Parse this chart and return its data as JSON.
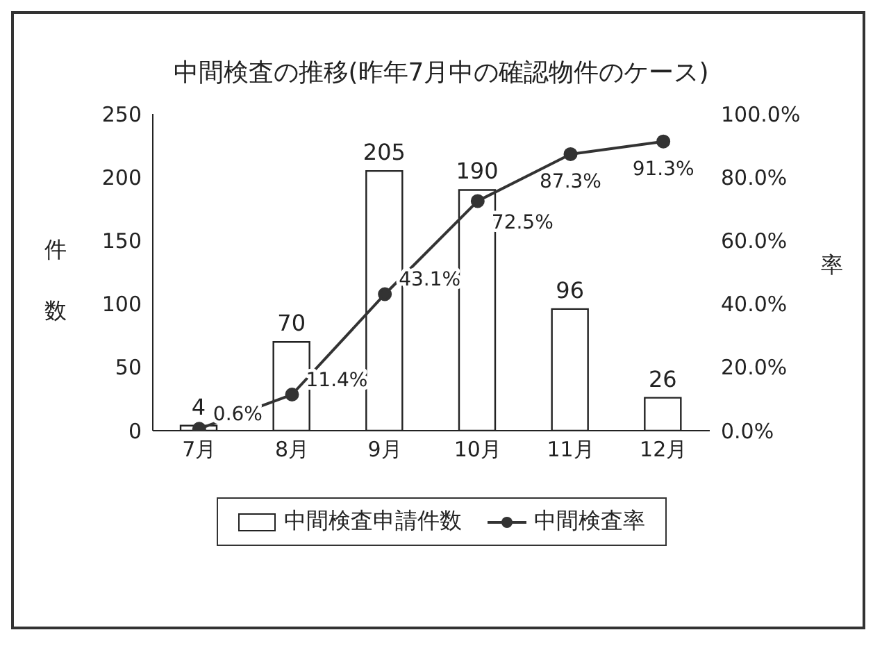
{
  "chart_data": {
    "type": "bar",
    "title": "中間検査の推移(昨年7月中の確認物件のケース)",
    "ylabel": "件数",
    "y2label": "率",
    "categories": [
      "7月",
      "8月",
      "9月",
      "10月",
      "11月",
      "12月"
    ],
    "series": [
      {
        "name": "中間検査申請件数",
        "color": "#ffffff",
        "values": [
          4,
          70,
          205,
          190,
          96,
          26
        ],
        "value_labels": [
          "4",
          "70",
          "205",
          "190",
          "96",
          "26"
        ]
      },
      {
        "name": "中間検査率",
        "type": "line",
        "axis": "y2",
        "color": "#333333",
        "values": [
          0.6,
          11.4,
          43.1,
          72.5,
          87.3,
          91.3
        ],
        "value_labels": [
          "0.6%",
          "11.4%",
          "43.1%",
          "72.5%",
          "87.3%",
          "91.3%"
        ]
      }
    ],
    "ylim": [
      0,
      250
    ],
    "yticks": [
      0,
      50,
      100,
      150,
      200,
      250
    ],
    "y2lim": [
      0,
      100
    ],
    "y2ticks": [
      {
        "value": 0,
        "label": "0.0%"
      },
      {
        "value": 20,
        "label": "20.0%"
      },
      {
        "value": 40,
        "label": "40.0%"
      },
      {
        "value": 60,
        "label": "60.0%"
      },
      {
        "value": 80,
        "label": "80.0%"
      },
      {
        "value": 100,
        "label": "100.0%"
      }
    ],
    "legend": "bottom",
    "marker": "circle",
    "grid": false
  }
}
